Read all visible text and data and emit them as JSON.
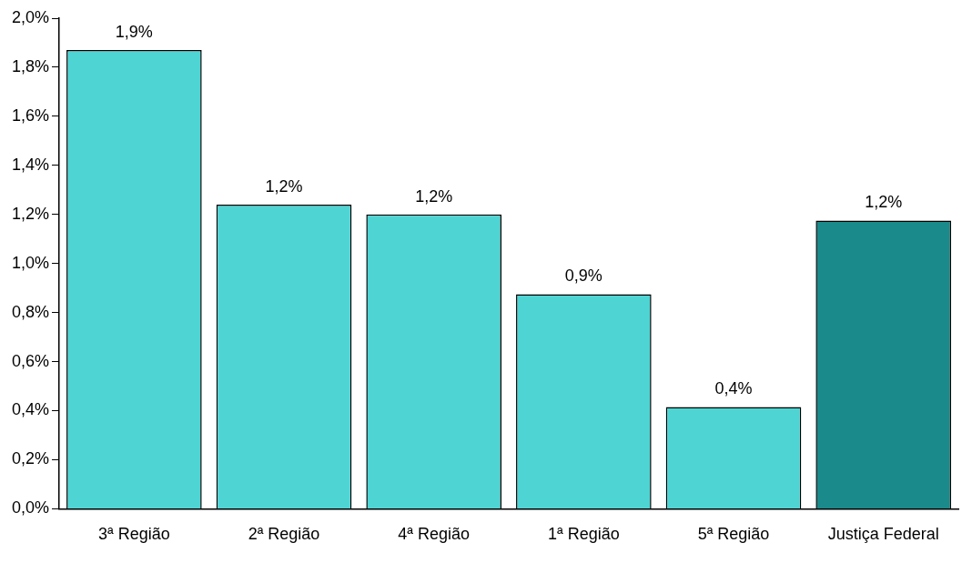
{
  "chart_data": {
    "type": "bar",
    "categories": [
      "3ª Região",
      "2ª Região",
      "4ª Região",
      "1ª Região",
      "5ª Região",
      "Justiça Federal"
    ],
    "values": [
      1.87,
      1.24,
      1.2,
      0.875,
      0.415,
      1.175
    ],
    "value_labels": [
      "1,9%",
      "1,2%",
      "1,2%",
      "0,9%",
      "0,4%",
      "1,2%"
    ],
    "colors": [
      "#4fd4d4",
      "#4fd4d4",
      "#4fd4d4",
      "#4fd4d4",
      "#4fd4d4",
      "#1a8a8a"
    ],
    "ylim": [
      0,
      2
    ],
    "yticks": [
      {
        "value": 0,
        "label": "0,0%"
      },
      {
        "value": 0.2,
        "label": "0,2%"
      },
      {
        "value": 0.4,
        "label": "0,4%"
      },
      {
        "value": 0.6,
        "label": "0,6%"
      },
      {
        "value": 0.8,
        "label": "0,8%"
      },
      {
        "value": 1.0,
        "label": "1,0%"
      },
      {
        "value": 1.2,
        "label": "1,2%"
      },
      {
        "value": 1.4,
        "label": "1,4%"
      },
      {
        "value": 1.6,
        "label": "1,6%"
      },
      {
        "value": 1.8,
        "label": "1,8%"
      },
      {
        "value": 2.0,
        "label": "2,0%"
      }
    ],
    "grid": false,
    "legend": false
  }
}
